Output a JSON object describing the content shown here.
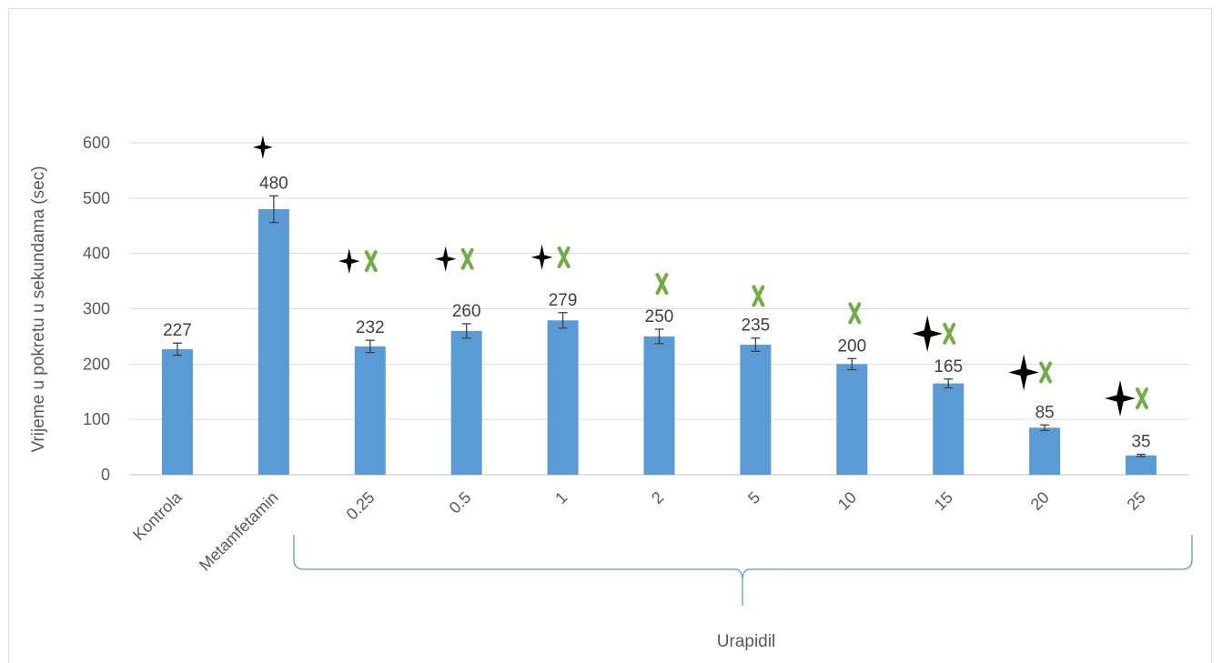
{
  "chart_data": {
    "type": "bar",
    "title": "",
    "xlabel": "",
    "ylabel": "Vrijeme u pokretu u sekundama (sec)",
    "group_label": "Urapidil",
    "categories": [
      "Kontrola",
      "Metamfetamin",
      "0.25",
      "0.5",
      "1",
      "2",
      "5",
      "10",
      "15",
      "20",
      "25"
    ],
    "values": [
      227,
      480,
      232,
      260,
      279,
      250,
      235,
      200,
      165,
      85,
      35
    ],
    "data_labels": [
      "227",
      "480",
      "232",
      "260",
      "279",
      "250",
      "235",
      "200",
      "165",
      "85",
      "35"
    ],
    "error": [
      11,
      24,
      11,
      13,
      14,
      13,
      12,
      10,
      8,
      5,
      2
    ],
    "ylim": [
      0,
      600
    ],
    "yticks": [
      0,
      100,
      200,
      300,
      400,
      500,
      600
    ],
    "ytick_labels": [
      "0",
      "100",
      "200",
      "300",
      "400",
      "500",
      "600"
    ],
    "grid": true,
    "bar_color": "#5b9bd5",
    "markers": {
      "star_color": "#000000",
      "cross_color": "#70ad47",
      "star_on": [
        false,
        true,
        true,
        true,
        true,
        false,
        false,
        false,
        true,
        true,
        true
      ],
      "cross_on": [
        false,
        false,
        true,
        true,
        true,
        true,
        true,
        true,
        true,
        true,
        true
      ],
      "marker_values": [
        null,
        592,
        386,
        390,
        393,
        345,
        323,
        292,
        255,
        185,
        138
      ]
    }
  }
}
